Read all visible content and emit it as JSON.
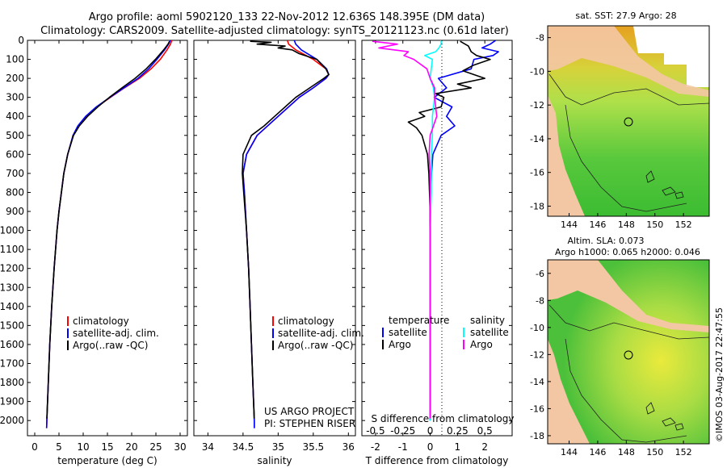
{
  "header": {
    "line1": "Argo profile: aoml 5902120_133 22-Nov-2012 12.636S 148.395E (DM data)",
    "line2": "Climatology: CARS2009. Satellite-adjusted climatology: synTS_20121123.nc (0.61d later)"
  },
  "colors": {
    "climatology": "#ff0000",
    "satellite": "#0000ff",
    "argo": "#000000",
    "satellite_s": "#00ffff",
    "argo_s": "#ff00ff",
    "land": "#f4c7a4",
    "ocean_green": "#52c23a",
    "ocean_yellow": "#e8e83a"
  },
  "depth_axis": {
    "ticks": [
      0,
      100,
      200,
      300,
      400,
      500,
      600,
      700,
      800,
      900,
      1000,
      1100,
      1200,
      1300,
      1400,
      1500,
      1600,
      1700,
      1800,
      1900,
      2000
    ],
    "range": [
      0,
      2080
    ]
  },
  "chart_data": [
    {
      "type": "line",
      "id": "temperature",
      "xlabel": "temperature (deg C)",
      "xlim": [
        -1.5,
        31.5
      ],
      "xticks": [
        0,
        5,
        10,
        15,
        20,
        25,
        30
      ],
      "legend": [
        "climatology",
        "satellite-adj. clim.",
        "Argo(..raw -QC)"
      ],
      "series": [
        {
          "name": "climatology",
          "color": "#ff0000",
          "depth": [
            0,
            20,
            50,
            100,
            150,
            200,
            250,
            300,
            350,
            400,
            450,
            500,
            600,
            700,
            800,
            900,
            1000,
            1200,
            1400,
            1600,
            1800,
            2000,
            2040
          ],
          "values": [
            28.3,
            28.0,
            27.3,
            25.9,
            24.0,
            21.6,
            18.5,
            15.6,
            12.8,
            10.6,
            9.0,
            7.9,
            6.8,
            6.0,
            5.5,
            5.0,
            4.6,
            4.0,
            3.5,
            3.1,
            2.8,
            2.5,
            2.45
          ]
        },
        {
          "name": "satellite-adj. clim.",
          "color": "#0000ff",
          "depth": [
            0,
            20,
            50,
            100,
            150,
            200,
            250,
            300,
            350,
            400,
            450,
            500,
            600,
            700,
            800,
            900,
            1000,
            1200,
            1400,
            1600,
            1800,
            2000,
            2040
          ],
          "values": [
            28.0,
            27.6,
            26.8,
            25.2,
            23.5,
            21.3,
            18.4,
            15.5,
            12.7,
            10.5,
            8.9,
            7.9,
            6.8,
            6.0,
            5.5,
            5.0,
            4.6,
            4.0,
            3.5,
            3.1,
            2.8,
            2.5,
            2.45
          ]
        },
        {
          "name": "Argo(..raw -QC)",
          "color": "#000000",
          "depth": [
            5,
            20,
            50,
            100,
            150,
            200,
            250,
            300,
            350,
            400,
            450,
            500,
            600,
            700,
            800,
            900,
            1000,
            1200,
            1400,
            1600,
            1800,
            1990
          ],
          "values": [
            27.8,
            27.5,
            26.6,
            24.9,
            23.0,
            20.7,
            18.0,
            15.4,
            13.0,
            10.9,
            9.2,
            8.0,
            6.8,
            6.0,
            5.5,
            5.0,
            4.6,
            4.0,
            3.5,
            3.1,
            2.8,
            2.5
          ]
        }
      ]
    },
    {
      "type": "line",
      "id": "salinity",
      "xlabel": "salinity",
      "xlim": [
        33.8,
        36.1
      ],
      "xticks": [
        34,
        34.5,
        35,
        35.5,
        36
      ],
      "xticklabels": [
        "34",
        "34.5",
        "35",
        "35.5",
        "36"
      ],
      "legend": [
        "climatology",
        "satellite-adj. clim.",
        "Argo(..raw -QC)"
      ],
      "annotation": [
        "US ARGO PROJECT",
        "PI: STEPHEN RISER"
      ],
      "series": [
        {
          "name": "climatology",
          "color": "#ff0000",
          "depth": [
            0,
            20,
            50,
            100,
            150,
            180,
            200,
            250,
            300,
            400,
            500,
            600,
            700,
            800,
            1000,
            1200,
            1400,
            1600,
            1800,
            2000,
            2040
          ],
          "values": [
            35.13,
            35.15,
            35.25,
            35.5,
            35.68,
            35.72,
            35.68,
            35.5,
            35.3,
            35.0,
            34.7,
            34.55,
            34.5,
            34.52,
            34.55,
            34.58,
            34.6,
            34.62,
            34.64,
            34.66,
            34.66
          ]
        },
        {
          "name": "satellite-adj. clim.",
          "color": "#0000ff",
          "depth": [
            0,
            20,
            50,
            100,
            150,
            180,
            200,
            250,
            300,
            400,
            500,
            600,
            700,
            800,
            1000,
            1200,
            1400,
            1600,
            1800,
            2000,
            2040
          ],
          "values": [
            35.23,
            35.25,
            35.33,
            35.55,
            35.69,
            35.72,
            35.68,
            35.5,
            35.3,
            35.0,
            34.7,
            34.55,
            34.5,
            34.52,
            34.55,
            34.58,
            34.6,
            34.62,
            34.64,
            34.66,
            34.66
          ]
        },
        {
          "name": "Argo(..raw -QC)",
          "color": "#000000",
          "depth": [
            5,
            10,
            20,
            30,
            40,
            50,
            70,
            100,
            150,
            180,
            200,
            250,
            300,
            400,
            450,
            500,
            600,
            700,
            800,
            1000,
            1200,
            1400,
            1600,
            1800,
            1990
          ],
          "values": [
            34.6,
            34.9,
            34.7,
            35.1,
            35.0,
            35.2,
            35.3,
            35.55,
            35.68,
            35.72,
            35.65,
            35.45,
            35.25,
            34.95,
            34.8,
            34.62,
            34.5,
            34.49,
            34.51,
            34.55,
            34.58,
            34.6,
            34.62,
            34.64,
            34.66
          ]
        }
      ]
    },
    {
      "type": "line",
      "id": "difference",
      "xlabel": "T difference from climatology",
      "xlabel_top": "S difference from climatology",
      "xlim": [
        -2.5,
        3.0
      ],
      "xticks": [
        -2,
        -1,
        0,
        1,
        2
      ],
      "s_ticks": [
        -0.5,
        -0.25,
        0,
        0.25,
        0.5
      ],
      "s_ticklabels": [
        "-0.5",
        "-0.25",
        "0",
        "0.25",
        "0.5"
      ],
      "legend_temperature": {
        "header": "temperature",
        "items": [
          "satellite",
          "Argo"
        ]
      },
      "legend_salinity": {
        "header": "salinity",
        "items": [
          "satellite",
          "Argo"
        ]
      },
      "series": [
        {
          "name": "temperature satellite",
          "color": "#0000ff",
          "depth": [
            0,
            20,
            40,
            60,
            80,
            100,
            150,
            200,
            250,
            300,
            350,
            400,
            450,
            500,
            600,
            700,
            900,
            1200,
            1500,
            2000
          ],
          "values": [
            2.4,
            2.2,
            1.9,
            2.5,
            2.3,
            1.6,
            1.5,
            0.3,
            0.6,
            0.15,
            0.8,
            0.6,
            0.9,
            0.4,
            0.1,
            0.05,
            0.0,
            0.0,
            0.0,
            0.0
          ]
        },
        {
          "name": "temperature Argo",
          "color": "#000000",
          "depth": [
            5,
            30,
            60,
            80,
            100,
            130,
            160,
            200,
            230,
            250,
            280,
            300,
            350,
            380,
            400,
            430,
            460,
            500,
            550,
            600,
            700,
            900,
            1200,
            1500,
            1990
          ],
          "values": [
            1.1,
            1.4,
            1.5,
            1.7,
            2.2,
            1.6,
            1.2,
            2.0,
            1.0,
            1.5,
            0.2,
            0.5,
            0.4,
            -0.4,
            -0.2,
            -0.8,
            -0.5,
            -0.3,
            -0.2,
            -0.1,
            -0.05,
            0.0,
            0.0,
            0.0,
            0.0
          ]
        },
        {
          "name": "salinity satellite",
          "color": "#00ffff",
          "depth": [
            0,
            20,
            40,
            60,
            80,
            100,
            150,
            200,
            250,
            300,
            400,
            500,
            600,
            800,
            1000,
            1500,
            2000
          ],
          "values": [
            0.1,
            0.1,
            0.08,
            0.05,
            -0.05,
            0.02,
            0.01,
            0.0,
            0.03,
            0.04,
            0.02,
            0.02,
            0.01,
            0.01,
            0.0,
            0.0,
            0.0
          ]
        },
        {
          "name": "salinity Argo",
          "color": "#ff00ff",
          "depth": [
            5,
            20,
            40,
            60,
            80,
            100,
            150,
            200,
            250,
            300,
            400,
            450,
            500,
            600,
            700,
            1000,
            1500,
            1990
          ],
          "values": [
            -0.53,
            -0.3,
            -0.47,
            -0.2,
            -0.24,
            -0.15,
            -0.03,
            0.0,
            0.04,
            0.04,
            0.06,
            0.03,
            0.0,
            -0.01,
            0.0,
            0.0,
            0.0,
            0.0
          ]
        }
      ]
    }
  ],
  "map_sst": {
    "title": "sat. SST: 27.9 Argo: 28",
    "xticks": [
      144,
      146,
      148,
      150,
      152
    ],
    "yticks": [
      -8,
      -10,
      -12,
      -14,
      -16,
      -18
    ]
  },
  "map_sla": {
    "title_line1": "Altim. SLA: 0.073",
    "title_line2": "Argo h1000: 0.065 h2000: 0.046",
    "xticks": [
      144,
      146,
      148,
      150,
      152
    ],
    "yticks": [
      -6,
      -8,
      -10,
      -12,
      -14,
      -16,
      -18
    ]
  },
  "float_position": {
    "lon": 148.395,
    "lat": -12.636
  },
  "watermark": "©IMOS 03-Aug-2017 22:47:55"
}
